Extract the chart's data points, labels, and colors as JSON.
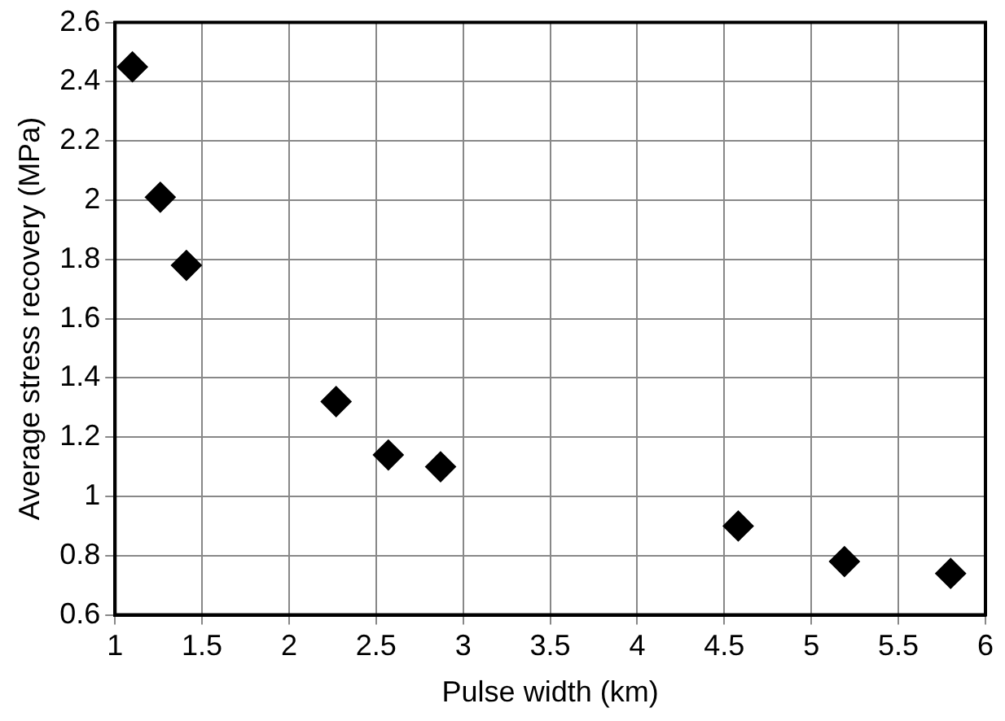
{
  "chart_data": {
    "type": "scatter",
    "xlabel": "Pulse width (km)",
    "ylabel": "Average stress recovery (MPa)",
    "x": [
      1.1,
      1.26,
      1.41,
      2.27,
      2.57,
      2.87,
      4.58,
      5.19,
      5.8
    ],
    "values": [
      2.45,
      2.01,
      1.78,
      1.32,
      1.14,
      1.1,
      0.9,
      0.78,
      0.74
    ],
    "color": "#000000",
    "marker": "diamond",
    "grid": true,
    "legend": false,
    "xlim": [
      1,
      6
    ],
    "xticks": [
      1,
      1.5,
      2,
      2.5,
      3,
      3.5,
      4,
      4.5,
      5,
      5.5,
      6
    ],
    "ylim": [
      0.6,
      2.6
    ],
    "yticks": [
      0.6,
      0.8,
      1,
      1.2,
      1.4,
      1.6,
      1.8,
      2,
      2.2,
      2.4,
      2.6
    ]
  }
}
